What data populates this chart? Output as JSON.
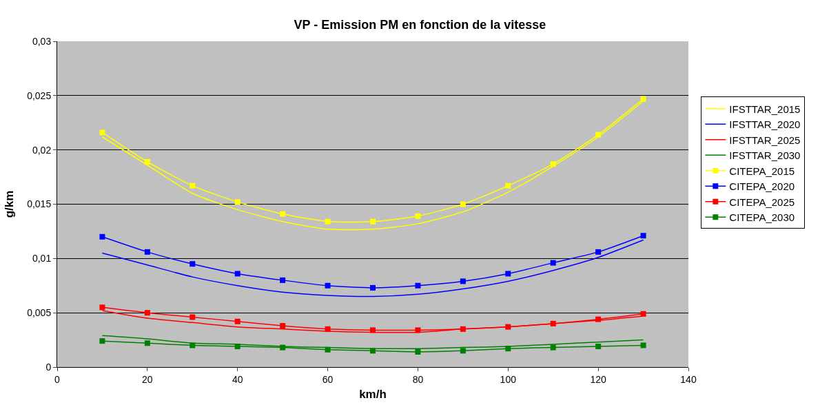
{
  "chart_data": {
    "type": "line",
    "title": "VP - Emission PM en fonction de la vitesse",
    "xlabel": "km/h",
    "ylabel": "g/km",
    "x": [
      10,
      20,
      30,
      40,
      50,
      60,
      70,
      80,
      90,
      100,
      110,
      120,
      130
    ],
    "series": [
      {
        "name": "IFSTTAR_2015",
        "color": "#ffff00",
        "marker": "none",
        "values": [
          0.0212,
          0.0186,
          0.016,
          0.0145,
          0.0134,
          0.0127,
          0.0127,
          0.0132,
          0.0143,
          0.0161,
          0.0185,
          0.0212,
          0.0245
        ]
      },
      {
        "name": "IFSTTAR_2020",
        "color": "#0000ff",
        "marker": "none",
        "values": [
          0.0105,
          0.0094,
          0.0083,
          0.0075,
          0.0069,
          0.0066,
          0.0065,
          0.0067,
          0.0072,
          0.0079,
          0.0089,
          0.0101,
          0.0117
        ]
      },
      {
        "name": "IFSTTAR_2025",
        "color": "#ff0000",
        "marker": "none",
        "values": [
          0.0052,
          0.0045,
          0.0041,
          0.0037,
          0.0035,
          0.0033,
          0.0032,
          0.0032,
          0.0035,
          0.0037,
          0.004,
          0.0043,
          0.0047
        ]
      },
      {
        "name": "IFSTTAR_2030",
        "color": "#008000",
        "marker": "none",
        "values": [
          0.0029,
          0.0026,
          0.0022,
          0.0021,
          0.0019,
          0.0018,
          0.0017,
          0.0017,
          0.0018,
          0.0019,
          0.0021,
          0.0023,
          0.0025
        ]
      },
      {
        "name": "CITEPA_2015",
        "color": "#ffff00",
        "marker": "square",
        "values": [
          0.0216,
          0.0189,
          0.0167,
          0.0152,
          0.0141,
          0.0134,
          0.0134,
          0.0139,
          0.015,
          0.0167,
          0.0187,
          0.0214,
          0.0247
        ]
      },
      {
        "name": "CITEPA_2020",
        "color": "#0000ff",
        "marker": "square",
        "values": [
          0.012,
          0.0106,
          0.0095,
          0.0086,
          0.008,
          0.0075,
          0.0073,
          0.0075,
          0.0079,
          0.0086,
          0.0096,
          0.0106,
          0.0121
        ]
      },
      {
        "name": "CITEPA_2025",
        "color": "#ff0000",
        "marker": "square",
        "values": [
          0.0055,
          0.005,
          0.0046,
          0.0042,
          0.0038,
          0.0035,
          0.0034,
          0.0034,
          0.0035,
          0.0037,
          0.004,
          0.0044,
          0.0049
        ]
      },
      {
        "name": "CITEPA_2030",
        "color": "#008000",
        "marker": "square",
        "values": [
          0.0024,
          0.0022,
          0.002,
          0.0019,
          0.0018,
          0.0016,
          0.0015,
          0.0014,
          0.0015,
          0.0017,
          0.0018,
          0.0019,
          0.002
        ]
      }
    ],
    "xlim": [
      0,
      140
    ],
    "xticks": [
      0,
      20,
      40,
      60,
      80,
      100,
      120,
      140
    ],
    "ylim": [
      0,
      0.03
    ],
    "yticks": [
      {
        "value": 0,
        "label": "0"
      },
      {
        "value": 0.005,
        "label": "0,005"
      },
      {
        "value": 0.01,
        "label": "0,01"
      },
      {
        "value": 0.015,
        "label": "0,015"
      },
      {
        "value": 0.02,
        "label": "0,02"
      },
      {
        "value": 0.025,
        "label": "0,025"
      },
      {
        "value": 0.03,
        "label": "0,03"
      }
    ],
    "grid": "y",
    "legend": "right"
  }
}
